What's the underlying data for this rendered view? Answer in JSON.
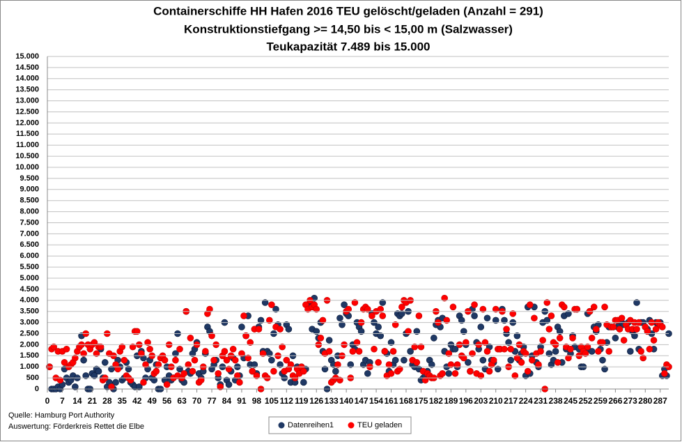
{
  "chart_data": {
    "type": "scatter",
    "title": "Containerschiffe HH Hafen 2016 TEU gelöscht/geladen (Anzahl = 291)",
    "subtitle": "Konstruktionstiefgang  >= 14,50 bis < 15,00 m (Salzwasser)",
    "subtitle2": "Teukapazität  7.489 bis 15.000",
    "source": "Quelle: Hamburg Port Authority",
    "evaluation": "Auswertung: Förderkreis Rettet die Elbe",
    "grid": true,
    "xlim": [
      0,
      291
    ],
    "xticks": [
      0,
      7,
      14,
      21,
      28,
      35,
      42,
      49,
      56,
      63,
      70,
      77,
      84,
      91,
      98,
      105,
      112,
      119,
      126,
      133,
      140,
      147,
      154,
      161,
      168,
      175,
      182,
      189,
      196,
      203,
      210,
      217,
      224,
      231,
      238,
      245,
      252,
      259,
      266,
      273,
      280,
      287
    ],
    "ylim": [
      0,
      15000
    ],
    "yticks": [
      0,
      500,
      {
        "value": 1000,
        "label": "1.000"
      },
      {
        "value": 1500,
        "label": "1.500"
      },
      {
        "value": 2000,
        "label": "2.000"
      },
      {
        "value": 2500,
        "label": "2.500"
      },
      {
        "value": 3000,
        "label": "3.000"
      },
      {
        "value": 3500,
        "label": "3.500"
      },
      {
        "value": 4000,
        "label": "4.000"
      },
      {
        "value": 4500,
        "label": "4.500"
      },
      {
        "value": 5000,
        "label": "5.000"
      },
      {
        "value": 5500,
        "label": "5.500"
      },
      {
        "value": 6000,
        "label": "6.000"
      },
      {
        "value": 6500,
        "label": "6.500"
      },
      {
        "value": 7000,
        "label": "7.000"
      },
      {
        "value": 7500,
        "label": "7.500"
      },
      {
        "value": 8000,
        "label": "8.000"
      },
      {
        "value": 8500,
        "label": "8.500"
      },
      {
        "value": 9000,
        "label": "9.000"
      },
      {
        "value": 9500,
        "label": "9.500"
      },
      {
        "value": 10000,
        "label": "10.000"
      },
      {
        "value": 10500,
        "label": "10.500"
      },
      {
        "value": 11000,
        "label": "11.000"
      },
      {
        "value": 11500,
        "label": "11.500"
      },
      {
        "value": 12000,
        "label": "12.000"
      },
      {
        "value": 12500,
        "label": "12.500"
      },
      {
        "value": 13000,
        "label": "13.000"
      },
      {
        "value": 13500,
        "label": "13.500"
      },
      {
        "value": 14000,
        "label": "14.000"
      },
      {
        "value": 14500,
        "label": "14.500"
      },
      {
        "value": 15000,
        "label": "15.000"
      }
    ],
    "x": [
      1,
      2,
      3,
      4,
      5,
      6,
      7,
      8,
      9,
      10,
      11,
      12,
      13,
      14,
      15,
      16,
      17,
      18,
      19,
      20,
      21,
      22,
      23,
      24,
      25,
      26,
      27,
      28,
      29,
      30,
      31,
      32,
      33,
      34,
      35,
      36,
      37,
      38,
      39,
      40,
      41,
      42,
      43,
      44,
      45,
      46,
      47,
      48,
      49,
      50,
      51,
      52,
      53,
      54,
      55,
      56,
      57,
      58,
      59,
      60,
      61,
      62,
      63,
      64,
      65,
      66,
      67,
      68,
      69,
      70,
      71,
      72,
      73,
      74,
      75,
      76,
      77,
      78,
      79,
      80,
      81,
      82,
      83,
      84,
      85,
      86,
      87,
      88,
      89,
      90,
      91,
      92,
      93,
      94,
      95,
      96,
      97,
      98,
      99,
      100,
      101,
      102,
      103,
      104,
      105,
      106,
      107,
      108,
      109,
      110,
      111,
      112,
      113,
      114,
      115,
      116,
      117,
      118,
      119,
      120,
      121,
      122,
      123,
      124,
      125,
      126,
      127,
      128,
      129,
      130,
      131,
      132,
      133,
      134,
      135,
      136,
      137,
      138,
      139,
      140,
      141,
      142,
      143,
      144,
      145,
      146,
      147,
      148,
      149,
      150,
      151,
      152,
      153,
      154,
      155,
      156,
      157,
      158,
      159,
      160,
      161,
      162,
      163,
      164,
      165,
      166,
      167,
      168,
      169,
      170,
      171,
      172,
      173,
      174,
      175,
      176,
      177,
      178,
      179,
      180,
      181,
      182,
      183,
      184,
      185,
      186,
      187,
      188,
      189,
      190,
      191,
      192,
      193,
      194,
      195,
      196,
      197,
      198,
      199,
      200,
      201,
      202,
      203,
      204,
      205,
      206,
      207,
      208,
      209,
      210,
      211,
      212,
      213,
      214,
      215,
      216,
      217,
      218,
      219,
      220,
      221,
      222,
      223,
      224,
      225,
      226,
      227,
      228,
      229,
      230,
      231,
      232,
      233,
      234,
      235,
      236,
      237,
      238,
      239,
      240,
      241,
      242,
      243,
      244,
      245,
      246,
      247,
      248,
      249,
      250,
      251,
      252,
      253,
      254,
      255,
      256,
      257,
      258,
      259,
      260,
      261,
      262,
      263,
      264,
      265,
      266,
      267,
      268,
      269,
      270,
      271,
      272,
      273,
      274,
      275,
      276,
      277,
      278,
      279,
      280,
      281,
      282,
      283,
      284,
      285,
      286,
      287,
      288,
      289,
      290,
      291
    ],
    "series": [
      {
        "name": "Datenreihen1",
        "color": "#1f3864",
        "values": [
          1000,
          0,
          0,
          0,
          100,
          0,
          200,
          900,
          500,
          300,
          400,
          600,
          100,
          500,
          1900,
          2400,
          1300,
          600,
          0,
          0,
          700,
          600,
          900,
          800,
          1800,
          500,
          1200,
          100,
          300,
          900,
          0,
          300,
          1300,
          1000,
          400,
          500,
          1200,
          900,
          300,
          200,
          100,
          1500,
          100,
          1700,
          1400,
          500,
          900,
          1300,
          500,
          400,
          1100,
          0,
          0,
          1400,
          400,
          1000,
          600,
          400,
          500,
          1600,
          2500,
          900,
          400,
          300,
          3500,
          800,
          700,
          1600,
          1800,
          2100,
          700,
          500,
          800,
          1600,
          2800,
          2600,
          900,
          1100,
          1300,
          500,
          200,
          1000,
          3000,
          400,
          200,
          800,
          1400,
          400,
          1000,
          600,
          2800,
          1400,
          2400,
          3300,
          1100,
          800,
          1100,
          700,
          2800,
          3100,
          1700,
          3900,
          1700,
          1600,
          1300,
          2500,
          3600,
          2900,
          1100,
          700,
          500,
          2900,
          2700,
          300,
          1500,
          300,
          1000,
          800,
          1000,
          300,
          900,
          3800,
          3700,
          2700,
          4100,
          2600,
          2300,
          3000,
          1700,
          900,
          0,
          2200,
          1300,
          1100,
          800,
          1500,
          3200,
          2900,
          3800,
          3400,
          3300,
          1100,
          2000,
          1800,
          3000,
          2800,
          2600,
          1100,
          1300,
          700,
          1200,
          3400,
          3000,
          2500,
          2800,
          2400,
          3900,
          1700,
          1600,
          800,
          2100,
          1100,
          1300,
          3400,
          3300,
          3400,
          1300,
          2500,
          3500,
          1700,
          1100,
          1000,
          2600,
          900,
          400,
          500,
          600,
          800,
          1300,
          1100,
          2300,
          2900,
          3100,
          2800,
          3200,
          1700,
          1000,
          700,
          2000,
          1800,
          1800,
          1000,
          3300,
          3100,
          2600,
          2000,
          1200,
          800,
          3600,
          3300,
          2100,
          1800,
          2800,
          1300,
          900,
          3200,
          1900,
          1300,
          1200,
          3100,
          900,
          1800,
          3600,
          3100,
          2500,
          2100,
          1300,
          3000,
          1700,
          2400,
          1300,
          1600,
          1900,
          600,
          3700,
          700,
          1500,
          3700,
          1200,
          1000,
          1900,
          3000,
          3500,
          3100,
          1600,
          1100,
          1300,
          1700,
          2800,
          2600,
          1200,
          3300,
          1800,
          3400,
          1600,
          2400,
          1900,
          3600,
          1800,
          1000,
          1000,
          1700,
          3400,
          3500,
          1700,
          2800,
          2600,
          2900,
          1800,
          1300,
          900,
          2100,
          2800,
          2800,
          2800,
          2300,
          2800,
          2900,
          3000,
          2900,
          2900,
          3000,
          1700,
          2600,
          2400,
          3900,
          1800,
          3000,
          3000,
          2800,
          2700,
          3100,
          2500,
          1800,
          3000,
          2900,
          3000,
          600,
          900,
          600,
          2500
        ]
      },
      {
        "name": "TEU geladen",
        "color": "#ff0000",
        "values": [
          1000,
          1800,
          1900,
          500,
          1700,
          400,
          1700,
          1200,
          1800,
          1000,
          1100,
          1200,
          1400,
          1700,
          1900,
          2000,
          1600,
          2500,
          2000,
          1800,
          2000,
          2100,
          1600,
          1900,
          1900,
          400,
          500,
          2500,
          1600,
          100,
          1500,
          1100,
          900,
          1700,
          1900,
          1300,
          600,
          500,
          400,
          1900,
          2600,
          2600,
          2000,
          1600,
          300,
          1100,
          2100,
          1800,
          1500,
          700,
          800,
          1100,
          1400,
          1500,
          1300,
          200,
          2000,
          1000,
          500,
          1300,
          600,
          1800,
          500,
          700,
          3500,
          1100,
          2300,
          800,
          1300,
          2000,
          300,
          400,
          1000,
          1700,
          3400,
          3600,
          2400,
          1300,
          2000,
          700,
          100,
          1500,
          1700,
          1300,
          900,
          1500,
          1800,
          1300,
          600,
          300,
          1600,
          3300,
          2400,
          1400,
          2100,
          800,
          2700,
          600,
          2700,
          0,
          1600,
          600,
          500,
          3100,
          3800,
          800,
          2800,
          1500,
          2700,
          1900,
          800,
          1300,
          900,
          1100,
          600,
          500,
          900,
          700,
          1000,
          800,
          3800,
          3600,
          4000,
          3700,
          3800,
          3600,
          2000,
          2300,
          3100,
          1600,
          4000,
          1700,
          300,
          400,
          500,
          1100,
          400,
          1500,
          2000,
          3500,
          3600,
          500,
          1700,
          3900,
          2100,
          1700,
          3000,
          3600,
          3700,
          3600,
          1000,
          3300,
          1800,
          3500,
          1200,
          3600,
          3300,
          1700,
          600,
          1100,
          700,
          1700,
          2900,
          800,
          900,
          3700,
          4000,
          3900,
          2600,
          4000,
          1300,
          1900,
          1200,
          3300,
          1900,
          800,
          400,
          700,
          600,
          500,
          500,
          3500,
          3000,
          600,
          700,
          4100,
          3100,
          1600,
          1100,
          3700,
          700,
          1100,
          2000,
          1500,
          1400,
          2100,
          3500,
          800,
          1600,
          3800,
          700,
          2000,
          600,
          3600,
          2100,
          1700,
          800,
          1100,
          1300,
          3600,
          1800,
          1800,
          3500,
          1800,
          2700,
          1000,
          1800,
          3400,
          600,
          1400,
          2000,
          1200,
          1700,
          1600,
          800,
          3800,
          1300,
          3200,
          1600,
          1100,
          1700,
          2200,
          0,
          3900,
          2700,
          3300,
          2100,
          2000,
          1200,
          2300,
          3800,
          3700,
          1900,
          1400,
          1800,
          2300,
          3600,
          3600,
          1500,
          1900,
          1700,
          1600,
          1900,
          3500,
          2300,
          3700,
          2700,
          1700,
          2100,
          2100,
          3700,
          2900,
          1700,
          2800,
          2800,
          3100,
          3100,
          2700,
          3200,
          2200,
          2900,
          2700,
          3100,
          2700,
          3000,
          2700,
          3000,
          1700,
          1400,
          2800,
          2600,
          1800,
          3000,
          2200,
          2700,
          3000,
          2900,
          2800,
          700,
          1100,
          1000
        ]
      }
    ]
  }
}
